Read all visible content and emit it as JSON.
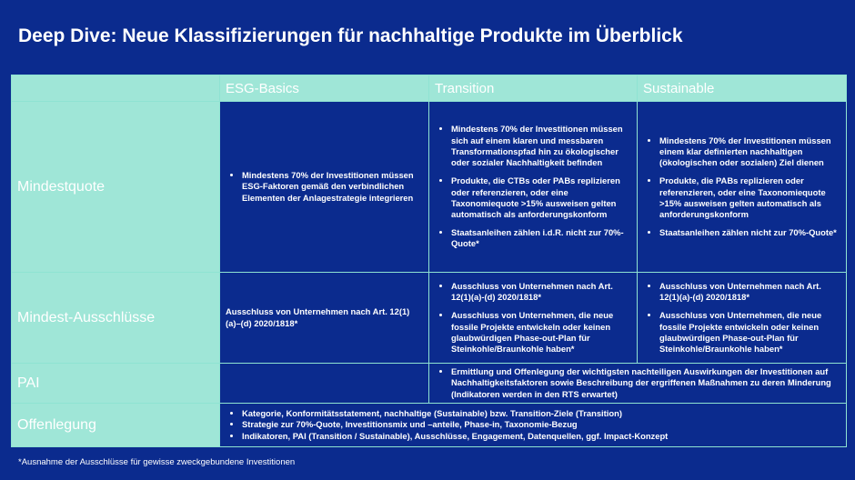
{
  "header": {
    "title": "Deep Dive: Neue Klassifizierungen für nachhaltige Produkte im Überblick"
  },
  "table": {
    "columns": [
      "ESG-Basics",
      "Transition",
      "Sustainable"
    ],
    "rows": [
      {
        "label": "Mindestquote",
        "cells": [
          {
            "items": [
              "Mindestens 70% der Investitionen müssen ESG-Faktoren gemäß den verbindlichen Elementen der Anlagestrategie integrieren"
            ]
          },
          {
            "items": [
              "Mindestens 70% der Investitionen müssen sich auf einem klaren und messbaren Transformationspfad hin zu ökologischer oder sozialer Nachhaltigkeit befinden",
              "Produkte, die CTBs oder PABs replizieren oder referenzieren, oder eine Taxonomiequote >15% ausweisen gelten automatisch als anforderungskonform",
              "Staatsanleihen zählen i.d.R. nicht zur 70%-Quote*"
            ]
          },
          {
            "items": [
              "Mindestens 70% der Investitionen müssen einem klar definierten nachhaltigen (ökologischen oder sozialen) Ziel dienen",
              "Produkte, die PABs replizieren oder referenzieren, oder eine Taxonomiequote >15% ausweisen gelten automatisch als anforderungskonform",
              "Staatsanleihen zählen nicht zur 70%-Quote*"
            ]
          }
        ]
      },
      {
        "label": "Mindest-Ausschlüsse",
        "cells": [
          {
            "text": "Ausschluss von Unternehmen nach Art. 12(1)(a)–(d) 2020/1818*"
          },
          {
            "items": [
              "Ausschluss von Unternehmen nach Art. 12(1)(a)-(d) 2020/1818*",
              "Ausschluss von Unternehmen, die neue fossile Projekte entwickeln oder keinen glaubwürdigen Phase-out-Plan für Steinkohle/Braunkohle haben*"
            ]
          },
          {
            "items": [
              "Ausschluss von Unternehmen nach Art. 12(1)(a)-(d) 2020/1818*",
              "Ausschluss von Unternehmen, die neue fossile Projekte entwickeln oder keinen glaubwürdigen Phase-out-Plan für Steinkohle/Braunkohle haben*"
            ]
          }
        ]
      },
      {
        "label": "PAI",
        "cells": [
          null,
          {
            "items": [
              "Ermittlung und Offenlegung der wichtigsten nachteiligen Auswirkungen der Investitionen auf Nachhaltigkeitsfaktoren sowie Beschreibung der ergriffenen Maßnahmen zu deren Minderung (Indikatoren werden in den RTS erwartet)"
            ]
          }
        ]
      },
      {
        "label": "Offenlegung",
        "cells": [
          {
            "items": [
              "Kategorie, Konformitätsstatement, nachhaltige (Sustainable) bzw. Transition-Ziele (Transition)",
              "Strategie zur 70%-Quote, Investitionsmix und –anteile, Phase-in, Taxonomie-Bezug",
              "Indikatoren, PAI (Transition / Sustainable), Ausschlüsse, Engagement, Datenquellen, ggf. Impact-Konzept"
            ]
          }
        ]
      }
    ]
  },
  "footnote": "*Ausnahme der Ausschlüsse für gewisse zweckgebundene Investitionen"
}
